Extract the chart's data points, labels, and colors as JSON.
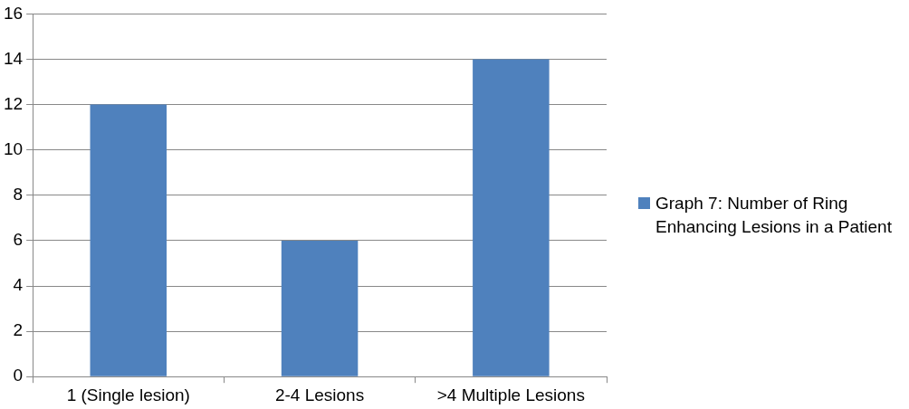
{
  "chart_data": {
    "type": "bar",
    "categories": [
      "1 (Single lesion)",
      "2-4 Lesions",
      ">4 Multiple Lesions"
    ],
    "series": [
      {
        "name": "Graph 7: Number of Ring Enhancing Lesions in a Patient",
        "color": "#4f81bd",
        "values": [
          12,
          6,
          14
        ]
      }
    ],
    "ylim": [
      0,
      16
    ],
    "yticks": [
      0,
      2,
      4,
      6,
      8,
      10,
      12,
      14,
      16
    ],
    "grid": "y",
    "legend": "right"
  }
}
